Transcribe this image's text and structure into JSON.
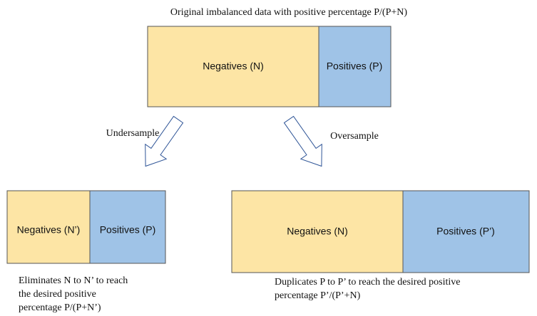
{
  "title": "Original imbalanced data with positive percentage P/(P+N)",
  "original": {
    "negatives": "Negatives (N)",
    "positives": "Positives (P)"
  },
  "undersample": {
    "label": "Undersample",
    "negatives": "Negatives (N’)",
    "positives": "Positives (P)",
    "caption": [
      "Eliminates N to N’ to reach",
      "the desired positive",
      "percentage P/(P+N’)"
    ]
  },
  "oversample": {
    "label": "Oversample",
    "negatives": "Negatives (N)",
    "positives": "Positives (P’)",
    "caption": [
      "Duplicates P to P’ to reach the desired positive",
      "percentage P’/(P’+N)"
    ]
  }
}
